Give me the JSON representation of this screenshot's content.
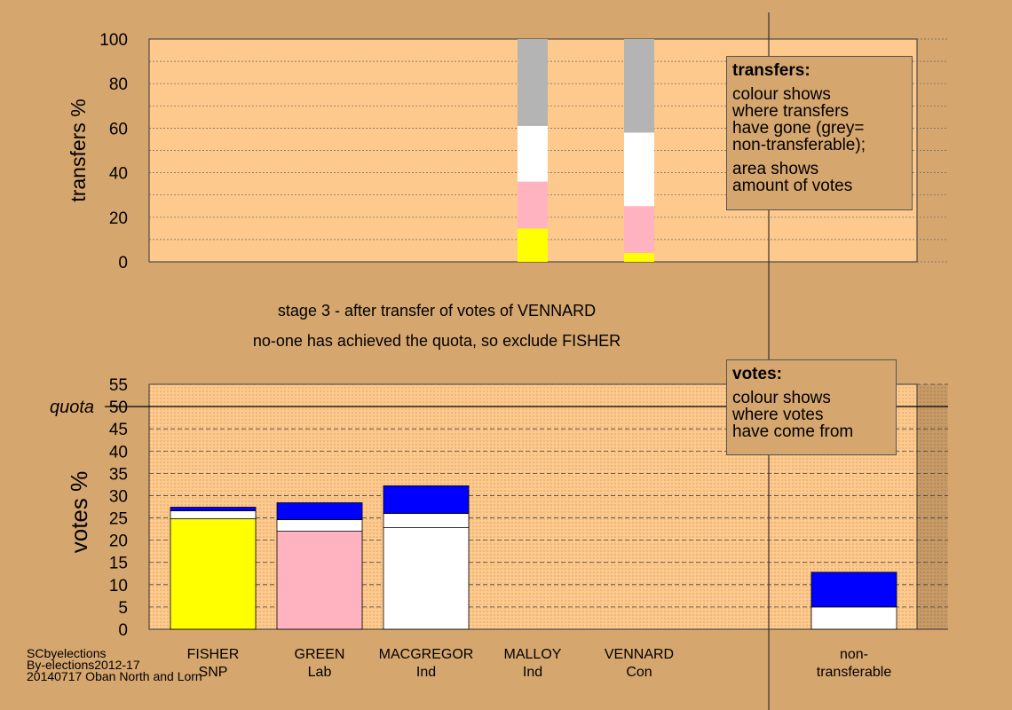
{
  "colors": {
    "background": "#d6a66f",
    "plot_background": "#fdc98c",
    "nontransferable_zone": "#c4955f",
    "yellow": "#ffff00",
    "pink": "#ffb3c1",
    "white": "#ffffff",
    "grey": "#b4b4b4",
    "blue": "#0000ff"
  },
  "stage_text": {
    "line1": "stage 3 - after transfer of votes of VENNARD",
    "line2": "no-one has achieved the quota, so exclude FISHER"
  },
  "transfers_box": {
    "title": "transfers:",
    "lines": [
      "colour shows",
      "where transfers",
      "have gone (grey=",
      "non-transferable);",
      "area shows",
      "amount of votes"
    ]
  },
  "votes_box": {
    "title": "votes:",
    "lines": [
      "colour shows",
      "where votes",
      "have come from"
    ]
  },
  "footer": {
    "line1": "SCbyelections",
    "line2": "By-elections2012-17",
    "line3": "20140717 Oban North and Lorn"
  },
  "candidates": [
    {
      "name": "FISHER",
      "party": "SNP"
    },
    {
      "name": "GREEN",
      "party": "Lab"
    },
    {
      "name": "MACGREGOR",
      "party": "Ind"
    },
    {
      "name": "MALLOY",
      "party": "Ind"
    },
    {
      "name": "VENNARD",
      "party": "Con"
    },
    {
      "name": "non-",
      "party": "transferable"
    }
  ],
  "chart_data": [
    {
      "type": "bar",
      "stacked": true,
      "ylabel": "transfers %",
      "ylim": [
        0,
        100
      ],
      "yticks": [
        0,
        20,
        40,
        60,
        80,
        100
      ],
      "grid": true,
      "bars": [
        {
          "slot": 3,
          "segments": [
            {
              "color": "yellow",
              "from": 0,
              "to": 15
            },
            {
              "color": "pink",
              "from": 15,
              "to": 36
            },
            {
              "color": "white",
              "from": 36,
              "to": 61
            },
            {
              "color": "grey",
              "from": 61,
              "to": 100
            }
          ]
        },
        {
          "slot": 4,
          "segments": [
            {
              "color": "yellow",
              "from": 0,
              "to": 4
            },
            {
              "color": "pink",
              "from": 4,
              "to": 25
            },
            {
              "color": "white",
              "from": 25,
              "to": 58
            },
            {
              "color": "grey",
              "from": 58,
              "to": 100
            }
          ]
        }
      ]
    },
    {
      "type": "bar",
      "stacked": true,
      "ylabel": "votes %",
      "ylim": [
        0,
        55
      ],
      "yticks": [
        0,
        5,
        10,
        15,
        20,
        25,
        30,
        35,
        40,
        45,
        50,
        55
      ],
      "quota": {
        "label": "quota",
        "value": 50
      },
      "grid": true,
      "bars": [
        {
          "slot": 0,
          "segments": [
            {
              "color": "yellow",
              "from": 0,
              "to": 24.8
            },
            {
              "color": "white",
              "from": 24.8,
              "to": 26.6
            },
            {
              "color": "blue",
              "from": 26.6,
              "to": 27.4
            }
          ]
        },
        {
          "slot": 1,
          "segments": [
            {
              "color": "pink",
              "from": 0,
              "to": 22
            },
            {
              "color": "white",
              "from": 22,
              "to": 24.6
            },
            {
              "color": "blue",
              "from": 24.6,
              "to": 28.4
            }
          ]
        },
        {
          "slot": 2,
          "segments": [
            {
              "color": "white",
              "from": 0,
              "to": 22.8
            },
            {
              "color": "white",
              "from": 22.8,
              "to": 26
            },
            {
              "color": "blue",
              "from": 26,
              "to": 32.2
            }
          ]
        },
        {
          "slot": 5,
          "segments": [
            {
              "color": "white",
              "from": 0,
              "to": 5
            },
            {
              "color": "blue",
              "from": 5,
              "to": 12.8
            }
          ]
        }
      ]
    }
  ]
}
